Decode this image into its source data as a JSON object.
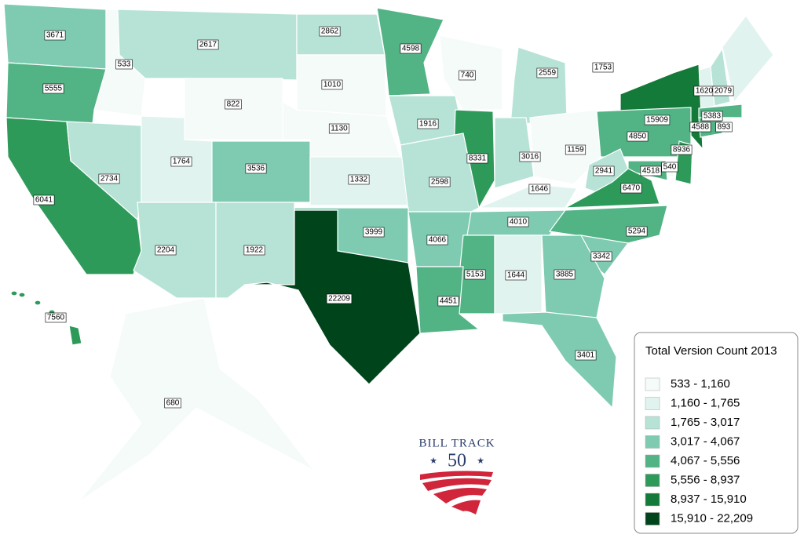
{
  "map": {
    "values": [
      3671,
      533,
      2617,
      2862,
      4598,
      740,
      2559,
      1753,
      1620,
      2079,
      5555,
      822,
      1010,
      15909,
      5383,
      4588,
      893,
      1916,
      1130,
      6041,
      2734,
      1764,
      3536,
      8331,
      3016,
      1159,
      4850,
      8936,
      540,
      4518,
      1332,
      2598,
      1646,
      2941,
      6470,
      2204,
      1922,
      3999,
      4066,
      4010,
      5294,
      3342,
      22209,
      5153,
      1644,
      3885,
      4451,
      3401,
      7560,
      680
    ],
    "legend": {
      "title": "Total Version Count 2013",
      "bins": [
        {
          "min": 533,
          "max": 1160,
          "label": "533 - 1,160",
          "color": "#f5fbf9"
        },
        {
          "min": 1160,
          "max": 1765,
          "label": "1,160 - 1,765",
          "color": "#e0f3ef"
        },
        {
          "min": 1765,
          "max": 3017,
          "label": "1,765 - 3,017",
          "color": "#b6e3d6"
        },
        {
          "min": 3017,
          "max": 4067,
          "label": "3,017 - 4,067",
          "color": "#7ecbb1"
        },
        {
          "min": 4067,
          "max": 5556,
          "label": "4,067 - 5,556",
          "color": "#52b385"
        },
        {
          "min": 5556,
          "max": 8937,
          "label": "5,556 - 8,937",
          "color": "#2e9a5a"
        },
        {
          "min": 8937,
          "max": 15910,
          "label": "8,937 - 15,910",
          "color": "#137a39"
        },
        {
          "min": 15910,
          "max": 22209,
          "label": "15,910 - 22,209",
          "color": "#00441b"
        }
      ]
    },
    "logo": {
      "line1": "BILL TRACK",
      "line2": "50"
    }
  }
}
